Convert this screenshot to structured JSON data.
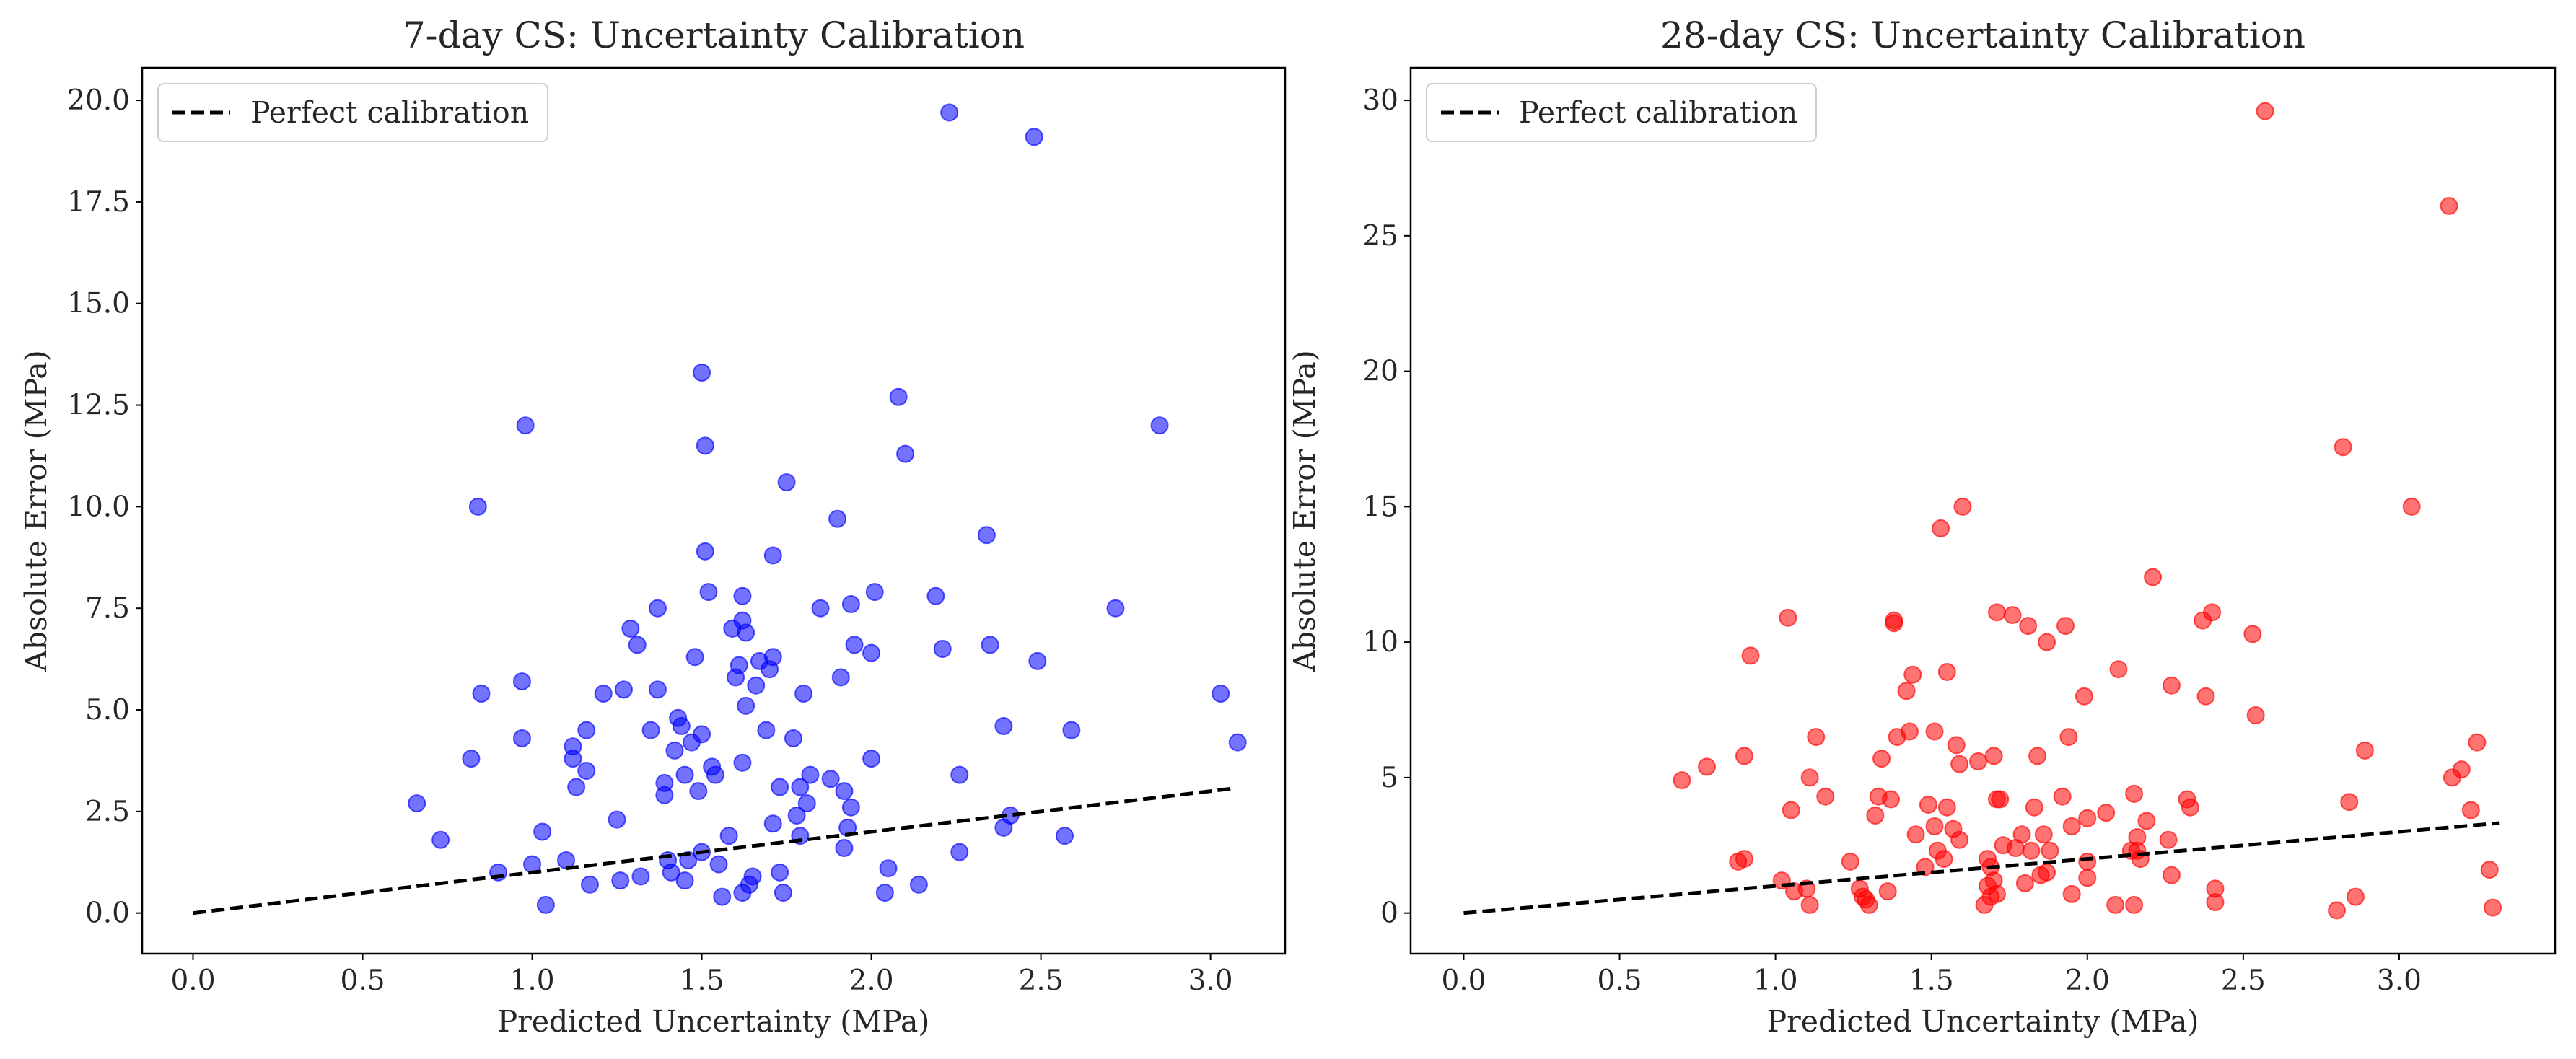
{
  "chart_data": [
    {
      "type": "scatter",
      "title": "7-day CS: Uncertainty Calibration",
      "xlabel": "Predicted Uncertainty (MPa)",
      "ylabel": "Absolute Error (MPa)",
      "xlim": [
        -0.15,
        3.22
      ],
      "ylim": [
        -1.0,
        20.8
      ],
      "xticks": [
        0.0,
        0.5,
        1.0,
        1.5,
        2.0,
        2.5,
        3.0
      ],
      "xtick_labels": [
        "0.0",
        "0.5",
        "1.0",
        "1.5",
        "2.0",
        "2.5",
        "3.0"
      ],
      "yticks": [
        0.0,
        2.5,
        5.0,
        7.5,
        10.0,
        12.5,
        15.0,
        17.5,
        20.0
      ],
      "ytick_labels": [
        "0.0",
        "2.5",
        "5.0",
        "7.5",
        "10.0",
        "12.5",
        "15.0",
        "17.5",
        "20.0"
      ],
      "grid": false,
      "legend": {
        "position": "top-left",
        "entries": [
          {
            "label": "Perfect calibration",
            "style": "dashed-line",
            "color": "#000000"
          }
        ]
      },
      "reference_line": {
        "label": "Perfect calibration",
        "x": [
          0.0,
          3.06
        ],
        "y": [
          0.0,
          3.06
        ]
      },
      "series": [
        {
          "marker_color": "#0000ff",
          "opacity": 0.55,
          "points": [
            [
              0.66,
              2.7
            ],
            [
              0.73,
              1.8
            ],
            [
              0.82,
              3.8
            ],
            [
              0.84,
              10.0
            ],
            [
              0.85,
              5.4
            ],
            [
              0.9,
              1.0
            ],
            [
              0.97,
              5.7
            ],
            [
              0.97,
              4.3
            ],
            [
              0.98,
              12.0
            ],
            [
              1.0,
              1.2
            ],
            [
              1.03,
              2.0
            ],
            [
              1.04,
              0.2
            ],
            [
              1.1,
              1.3
            ],
            [
              1.12,
              4.1
            ],
            [
              1.12,
              3.8
            ],
            [
              1.13,
              3.1
            ],
            [
              1.16,
              4.5
            ],
            [
              1.16,
              3.5
            ],
            [
              1.17,
              0.7
            ],
            [
              1.21,
              5.4
            ],
            [
              1.25,
              2.3
            ],
            [
              1.26,
              0.8
            ],
            [
              1.27,
              5.5
            ],
            [
              1.29,
              7.0
            ],
            [
              1.31,
              6.6
            ],
            [
              1.32,
              0.9
            ],
            [
              1.35,
              4.5
            ],
            [
              1.37,
              5.5
            ],
            [
              1.37,
              7.5
            ],
            [
              1.39,
              2.9
            ],
            [
              1.39,
              3.2
            ],
            [
              1.4,
              1.3
            ],
            [
              1.41,
              1.0
            ],
            [
              1.42,
              4.0
            ],
            [
              1.43,
              4.8
            ],
            [
              1.44,
              4.6
            ],
            [
              1.45,
              3.4
            ],
            [
              1.45,
              0.8
            ],
            [
              1.46,
              1.3
            ],
            [
              1.47,
              4.2
            ],
            [
              1.48,
              6.3
            ],
            [
              1.49,
              3.0
            ],
            [
              1.5,
              1.5
            ],
            [
              1.5,
              4.4
            ],
            [
              1.5,
              13.3
            ],
            [
              1.51,
              11.5
            ],
            [
              1.51,
              8.9
            ],
            [
              1.52,
              7.9
            ],
            [
              1.53,
              3.6
            ],
            [
              1.54,
              3.4
            ],
            [
              1.55,
              1.2
            ],
            [
              1.56,
              0.4
            ],
            [
              1.58,
              1.9
            ],
            [
              1.59,
              7.0
            ],
            [
              1.6,
              5.8
            ],
            [
              1.61,
              6.1
            ],
            [
              1.62,
              7.8
            ],
            [
              1.62,
              7.2
            ],
            [
              1.62,
              3.7
            ],
            [
              1.62,
              0.5
            ],
            [
              1.63,
              6.9
            ],
            [
              1.63,
              5.1
            ],
            [
              1.64,
              0.7
            ],
            [
              1.65,
              0.9
            ],
            [
              1.66,
              5.6
            ],
            [
              1.67,
              6.2
            ],
            [
              1.69,
              4.5
            ],
            [
              1.7,
              6.0
            ],
            [
              1.71,
              6.3
            ],
            [
              1.71,
              2.2
            ],
            [
              1.71,
              8.8
            ],
            [
              1.73,
              3.1
            ],
            [
              1.73,
              1.0
            ],
            [
              1.74,
              0.5
            ],
            [
              1.75,
              10.6
            ],
            [
              1.77,
              4.3
            ],
            [
              1.78,
              2.4
            ],
            [
              1.79,
              1.9
            ],
            [
              1.79,
              3.1
            ],
            [
              1.8,
              5.4
            ],
            [
              1.81,
              2.7
            ],
            [
              1.82,
              3.4
            ],
            [
              1.85,
              7.5
            ],
            [
              1.88,
              3.3
            ],
            [
              1.9,
              9.7
            ],
            [
              1.91,
              5.8
            ],
            [
              1.92,
              3.0
            ],
            [
              1.92,
              1.6
            ],
            [
              1.93,
              2.1
            ],
            [
              1.94,
              2.6
            ],
            [
              1.94,
              7.6
            ],
            [
              1.95,
              6.6
            ],
            [
              2.0,
              6.4
            ],
            [
              2.0,
              3.8
            ],
            [
              2.01,
              7.9
            ],
            [
              2.04,
              0.5
            ],
            [
              2.05,
              1.1
            ],
            [
              2.08,
              12.7
            ],
            [
              2.1,
              11.3
            ],
            [
              2.14,
              0.7
            ],
            [
              2.19,
              7.8
            ],
            [
              2.21,
              6.5
            ],
            [
              2.23,
              19.7
            ],
            [
              2.26,
              3.4
            ],
            [
              2.26,
              1.5
            ],
            [
              2.34,
              9.3
            ],
            [
              2.35,
              6.6
            ],
            [
              2.39,
              2.1
            ],
            [
              2.39,
              4.6
            ],
            [
              2.41,
              2.4
            ],
            [
              2.48,
              19.1
            ],
            [
              2.49,
              6.2
            ],
            [
              2.57,
              1.9
            ],
            [
              2.59,
              4.5
            ],
            [
              2.72,
              7.5
            ],
            [
              2.85,
              12.0
            ],
            [
              3.03,
              5.4
            ],
            [
              3.08,
              4.2
            ]
          ]
        }
      ]
    },
    {
      "type": "scatter",
      "title": "28-day CS: Uncertainty Calibration",
      "xlabel": "Predicted Uncertainty (MPa)",
      "ylabel": "Absolute Error (MPa)",
      "xlim": [
        -0.17,
        3.5
      ],
      "ylim": [
        -1.5,
        31.2
      ],
      "xticks": [
        0.0,
        0.5,
        1.0,
        1.5,
        2.0,
        2.5,
        3.0
      ],
      "xtick_labels": [
        "0.0",
        "0.5",
        "1.0",
        "1.5",
        "2.0",
        "2.5",
        "3.0"
      ],
      "yticks": [
        0,
        5,
        10,
        15,
        20,
        25,
        30
      ],
      "ytick_labels": [
        "0",
        "5",
        "10",
        "15",
        "20",
        "25",
        "30"
      ],
      "grid": false,
      "legend": {
        "position": "top-left",
        "entries": [
          {
            "label": "Perfect calibration",
            "style": "dashed-line",
            "color": "#000000"
          }
        ]
      },
      "reference_line": {
        "label": "Perfect calibration",
        "x": [
          0.0,
          3.32
        ],
        "y": [
          0.0,
          3.32
        ]
      },
      "series": [
        {
          "marker_color": "#ff0000",
          "opacity": 0.55,
          "points": [
            [
              0.7,
              4.9
            ],
            [
              0.78,
              5.4
            ],
            [
              0.88,
              1.9
            ],
            [
              0.9,
              2.0
            ],
            [
              0.9,
              5.8
            ],
            [
              0.92,
              9.5
            ],
            [
              1.02,
              1.2
            ],
            [
              1.04,
              10.9
            ],
            [
              1.05,
              3.8
            ],
            [
              1.06,
              0.8
            ],
            [
              1.1,
              0.9
            ],
            [
              1.11,
              0.3
            ],
            [
              1.11,
              5.0
            ],
            [
              1.13,
              6.5
            ],
            [
              1.16,
              4.3
            ],
            [
              1.24,
              1.9
            ],
            [
              1.27,
              0.9
            ],
            [
              1.28,
              0.6
            ],
            [
              1.29,
              0.5
            ],
            [
              1.3,
              0.3
            ],
            [
              1.32,
              3.6
            ],
            [
              1.33,
              4.3
            ],
            [
              1.34,
              5.7
            ],
            [
              1.36,
              0.8
            ],
            [
              1.37,
              4.2
            ],
            [
              1.38,
              10.7
            ],
            [
              1.38,
              10.8
            ],
            [
              1.39,
              6.5
            ],
            [
              1.42,
              8.2
            ],
            [
              1.43,
              6.7
            ],
            [
              1.44,
              8.8
            ],
            [
              1.45,
              2.9
            ],
            [
              1.48,
              1.7
            ],
            [
              1.49,
              4.0
            ],
            [
              1.51,
              6.7
            ],
            [
              1.51,
              3.2
            ],
            [
              1.52,
              2.3
            ],
            [
              1.53,
              14.2
            ],
            [
              1.54,
              2.0
            ],
            [
              1.55,
              3.9
            ],
            [
              1.55,
              8.9
            ],
            [
              1.57,
              3.1
            ],
            [
              1.58,
              6.2
            ],
            [
              1.59,
              2.7
            ],
            [
              1.59,
              5.5
            ],
            [
              1.6,
              15.0
            ],
            [
              1.65,
              5.6
            ],
            [
              1.67,
              0.3
            ],
            [
              1.68,
              1.0
            ],
            [
              1.68,
              2.0
            ],
            [
              1.69,
              1.7
            ],
            [
              1.69,
              0.6
            ],
            [
              1.7,
              5.8
            ],
            [
              1.7,
              1.2
            ],
            [
              1.71,
              4.2
            ],
            [
              1.71,
              11.1
            ],
            [
              1.71,
              0.7
            ],
            [
              1.72,
              4.2
            ],
            [
              1.73,
              2.5
            ],
            [
              1.76,
              11.0
            ],
            [
              1.77,
              2.4
            ],
            [
              1.79,
              2.9
            ],
            [
              1.8,
              1.1
            ],
            [
              1.81,
              10.6
            ],
            [
              1.82,
              2.3
            ],
            [
              1.83,
              3.9
            ],
            [
              1.84,
              5.8
            ],
            [
              1.85,
              1.4
            ],
            [
              1.86,
              2.9
            ],
            [
              1.87,
              10.0
            ],
            [
              1.87,
              1.5
            ],
            [
              1.88,
              2.3
            ],
            [
              1.92,
              4.3
            ],
            [
              1.93,
              10.6
            ],
            [
              1.94,
              6.5
            ],
            [
              1.95,
              3.2
            ],
            [
              1.95,
              0.7
            ],
            [
              1.99,
              8.0
            ],
            [
              2.0,
              3.5
            ],
            [
              2.0,
              1.9
            ],
            [
              2.0,
              1.3
            ],
            [
              2.06,
              3.7
            ],
            [
              2.09,
              0.3
            ],
            [
              2.1,
              9.0
            ],
            [
              2.14,
              2.3
            ],
            [
              2.15,
              4.4
            ],
            [
              2.15,
              0.3
            ],
            [
              2.16,
              2.8
            ],
            [
              2.16,
              2.3
            ],
            [
              2.17,
              2.0
            ],
            [
              2.19,
              3.4
            ],
            [
              2.21,
              12.4
            ],
            [
              2.26,
              2.7
            ],
            [
              2.27,
              8.4
            ],
            [
              2.27,
              1.4
            ],
            [
              2.32,
              4.2
            ],
            [
              2.33,
              3.9
            ],
            [
              2.37,
              10.8
            ],
            [
              2.38,
              8.0
            ],
            [
              2.4,
              11.1
            ],
            [
              2.41,
              0.9
            ],
            [
              2.41,
              0.4
            ],
            [
              2.53,
              10.3
            ],
            [
              2.54,
              7.3
            ],
            [
              2.57,
              29.6
            ],
            [
              2.8,
              0.1
            ],
            [
              2.82,
              17.2
            ],
            [
              2.84,
              4.1
            ],
            [
              2.86,
              0.6
            ],
            [
              2.89,
              6.0
            ],
            [
              3.04,
              15.0
            ],
            [
              3.16,
              26.1
            ],
            [
              3.17,
              5.0
            ],
            [
              3.2,
              5.3
            ],
            [
              3.23,
              3.8
            ],
            [
              3.25,
              6.3
            ],
            [
              3.29,
              1.6
            ],
            [
              3.3,
              0.2
            ]
          ]
        }
      ]
    }
  ]
}
